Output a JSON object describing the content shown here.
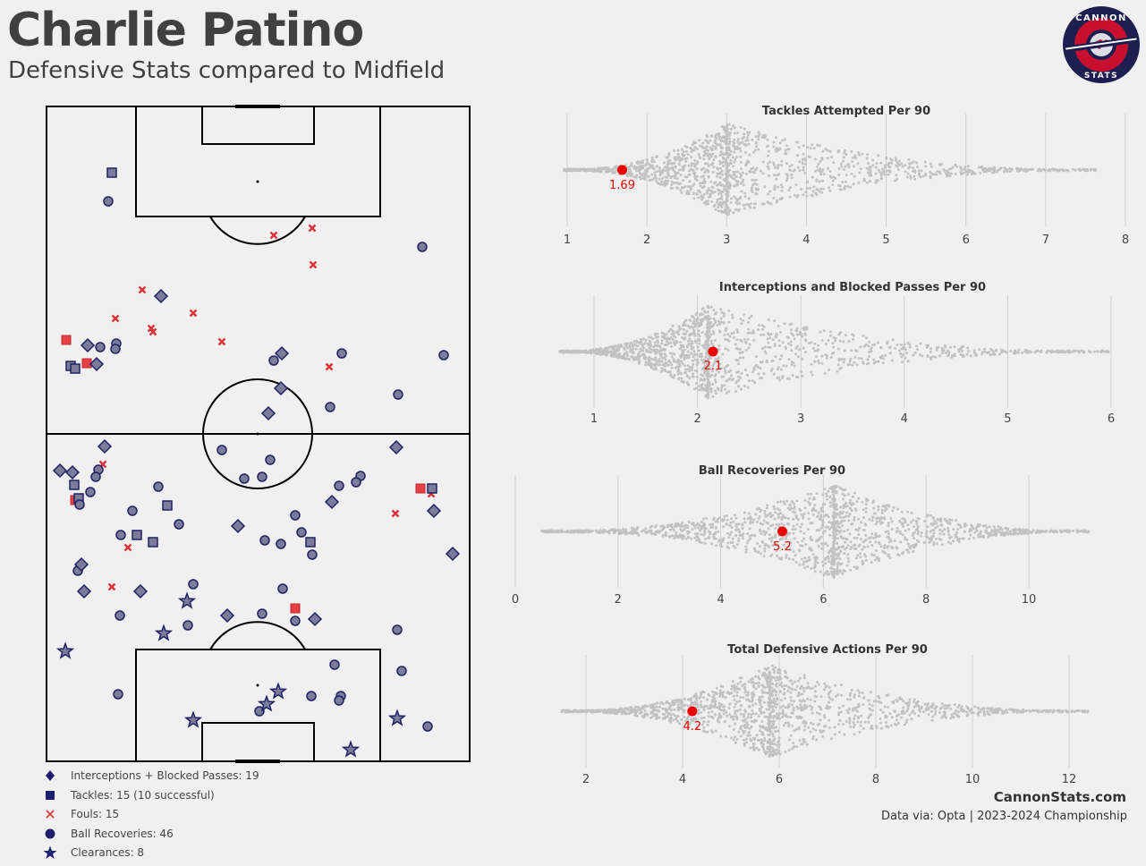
{
  "header": {
    "title": "Charlie Patino",
    "subtitle": "Defensive Stats compared to Midfield"
  },
  "logo": {
    "top_text": "CANNON",
    "bottom_text": "STATS",
    "colors": {
      "outer": "#1c1f4f",
      "ring": "#c8102e",
      "inner": "#1c1f4f"
    }
  },
  "colors": {
    "marker_fill": "#7a7c99",
    "marker_edge": "#1f2366",
    "foul": "#d9333b",
    "tackle_fail": "#e64146",
    "highlight": "#ee0000",
    "swarm_dot": "#c2c2c2"
  },
  "legend": [
    {
      "icon": "diamond-icon",
      "label": "Interceptions + Blocked Passes: 19"
    },
    {
      "icon": "square-icon",
      "label": "Tackles: 15 (10 successful)"
    },
    {
      "icon": "x-icon",
      "label": "Fouls: 15"
    },
    {
      "icon": "circle-icon",
      "label": "Ball Recoveries: 46"
    },
    {
      "icon": "star-icon",
      "label": "Clearances: 8"
    }
  ],
  "pitch_events": {
    "interceptions": [
      [
        180,
        331
      ],
      [
        98,
        386
      ],
      [
        108,
        407
      ],
      [
        315,
        395
      ],
      [
        314,
        434
      ],
      [
        300,
        462
      ],
      [
        117,
        499
      ],
      [
        67,
        526
      ],
      [
        81,
        528
      ],
      [
        443,
        500
      ],
      [
        485,
        571
      ],
      [
        371,
        561
      ],
      [
        266,
        588
      ],
      [
        506,
        619
      ],
      [
        91,
        631
      ],
      [
        94,
        661
      ],
      [
        157,
        661
      ],
      [
        254,
        688
      ],
      [
        352,
        692
      ]
    ],
    "tackles_success": [
      [
        125,
        193
      ],
      [
        79,
        409
      ],
      [
        84,
        412
      ],
      [
        83,
        542
      ],
      [
        88,
        557
      ],
      [
        187,
        565
      ],
      [
        153,
        598
      ],
      [
        171,
        606
      ],
      [
        347,
        606
      ],
      [
        483,
        546
      ]
    ],
    "tackles_failed": [
      [
        74,
        380
      ],
      [
        97,
        406
      ],
      [
        470,
        546
      ],
      [
        84,
        559
      ],
      [
        330,
        680
      ]
    ],
    "fouls": [
      [
        306,
        263
      ],
      [
        349,
        255
      ],
      [
        350,
        296
      ],
      [
        159,
        324
      ],
      [
        129,
        356
      ],
      [
        169,
        367
      ],
      [
        171,
        371
      ],
      [
        216,
        350
      ],
      [
        248,
        382
      ],
      [
        368,
        410
      ],
      [
        115,
        519
      ],
      [
        143,
        612
      ],
      [
        125,
        656
      ],
      [
        442,
        574
      ],
      [
        482,
        552
      ]
    ],
    "recoveries": [
      [
        121,
        225
      ],
      [
        472,
        276
      ],
      [
        112,
        388
      ],
      [
        130,
        384
      ],
      [
        129,
        390
      ],
      [
        306,
        403
      ],
      [
        382,
        395
      ],
      [
        496,
        397
      ],
      [
        445,
        441
      ],
      [
        369,
        455
      ],
      [
        248,
        503
      ],
      [
        302,
        514
      ],
      [
        293,
        533
      ],
      [
        273,
        535
      ],
      [
        110,
        525
      ],
      [
        107,
        533
      ],
      [
        101,
        550
      ],
      [
        89,
        564
      ],
      [
        177,
        544
      ],
      [
        148,
        571
      ],
      [
        200,
        586
      ],
      [
        135,
        598
      ],
      [
        330,
        576
      ],
      [
        296,
        604
      ],
      [
        314,
        608
      ],
      [
        337,
        595
      ],
      [
        349,
        620
      ],
      [
        403,
        532
      ],
      [
        398,
        539
      ],
      [
        379,
        543
      ],
      [
        87,
        638
      ],
      [
        216,
        653
      ],
      [
        316,
        658
      ],
      [
        134,
        688
      ],
      [
        210,
        699
      ],
      [
        293,
        686
      ],
      [
        330,
        694
      ],
      [
        444,
        704
      ],
      [
        374,
        743
      ],
      [
        449,
        750
      ],
      [
        132,
        776
      ],
      [
        348,
        778
      ],
      [
        381,
        778
      ],
      [
        379,
        783
      ],
      [
        478,
        812
      ],
      [
        290,
        795
      ]
    ],
    "clearances": [
      [
        73,
        728
      ],
      [
        183,
        708
      ],
      [
        209,
        672
      ],
      [
        216,
        805
      ],
      [
        311,
        773
      ],
      [
        298,
        787
      ],
      [
        444,
        803
      ],
      [
        392,
        838
      ]
    ]
  },
  "chart_data": [
    {
      "type": "scatter",
      "subtype": "beeswarm",
      "title": "Tackles Attempted Per 90",
      "xlabel": "",
      "ylabel": "",
      "xlim": [
        0.9,
        8.1
      ],
      "ticks": [
        1,
        2,
        3,
        4,
        5,
        6,
        7,
        8
      ],
      "tick_labels": [
        "1",
        "2",
        "3",
        "4",
        "5",
        "6",
        "7",
        "8"
      ],
      "distribution": {
        "min": 0.95,
        "max": 7.65,
        "mode": 3.0,
        "n": 1500
      },
      "player_value": 1.69,
      "player_label": "1.69",
      "grid": true
    },
    {
      "type": "scatter",
      "subtype": "beeswarm",
      "title": "Interceptions and Blocked Passes Per 90",
      "xlabel": "",
      "ylabel": "",
      "xlim": [
        0.6,
        6.1
      ],
      "ticks": [
        1,
        2,
        3,
        4,
        5,
        6
      ],
      "tick_labels": [
        "1",
        "2",
        "3",
        "4",
        "5",
        "6"
      ],
      "distribution": {
        "min": 0.65,
        "max": 6.0,
        "mode": 2.1,
        "n": 1500
      },
      "player_value": 2.15,
      "player_label": "2.1",
      "grid": true
    },
    {
      "type": "scatter",
      "subtype": "beeswarm",
      "title": "Ball Recoveries Per 90",
      "xlabel": "",
      "ylabel": "",
      "xlim": [
        -0.2,
        11.3
      ],
      "ticks": [
        0,
        2,
        4,
        6,
        8,
        10
      ],
      "tick_labels": [
        "0",
        "2",
        "4",
        "6",
        "8",
        "10"
      ],
      "distribution": {
        "min": 0.5,
        "max": 11.2,
        "mode": 6.2,
        "n": 1500
      },
      "player_value": 5.2,
      "player_label": "5.2",
      "grid": true
    },
    {
      "type": "scatter",
      "subtype": "beeswarm",
      "title": "Total Defensive Actions Per 90",
      "xlabel": "",
      "ylabel": "",
      "xlim": [
        1.4,
        13.0
      ],
      "ticks": [
        2,
        4,
        6,
        8,
        10,
        12
      ],
      "tick_labels": [
        "2",
        "4",
        "6",
        "8",
        "10",
        "12"
      ],
      "distribution": {
        "min": 1.5,
        "max": 12.4,
        "mode": 5.8,
        "n": 1500
      },
      "player_value": 4.2,
      "player_label": "4.2",
      "grid": true
    }
  ],
  "footer": {
    "site": "CannonStats.com",
    "credit": "Data via: Opta | 2023-2024 Championship"
  }
}
